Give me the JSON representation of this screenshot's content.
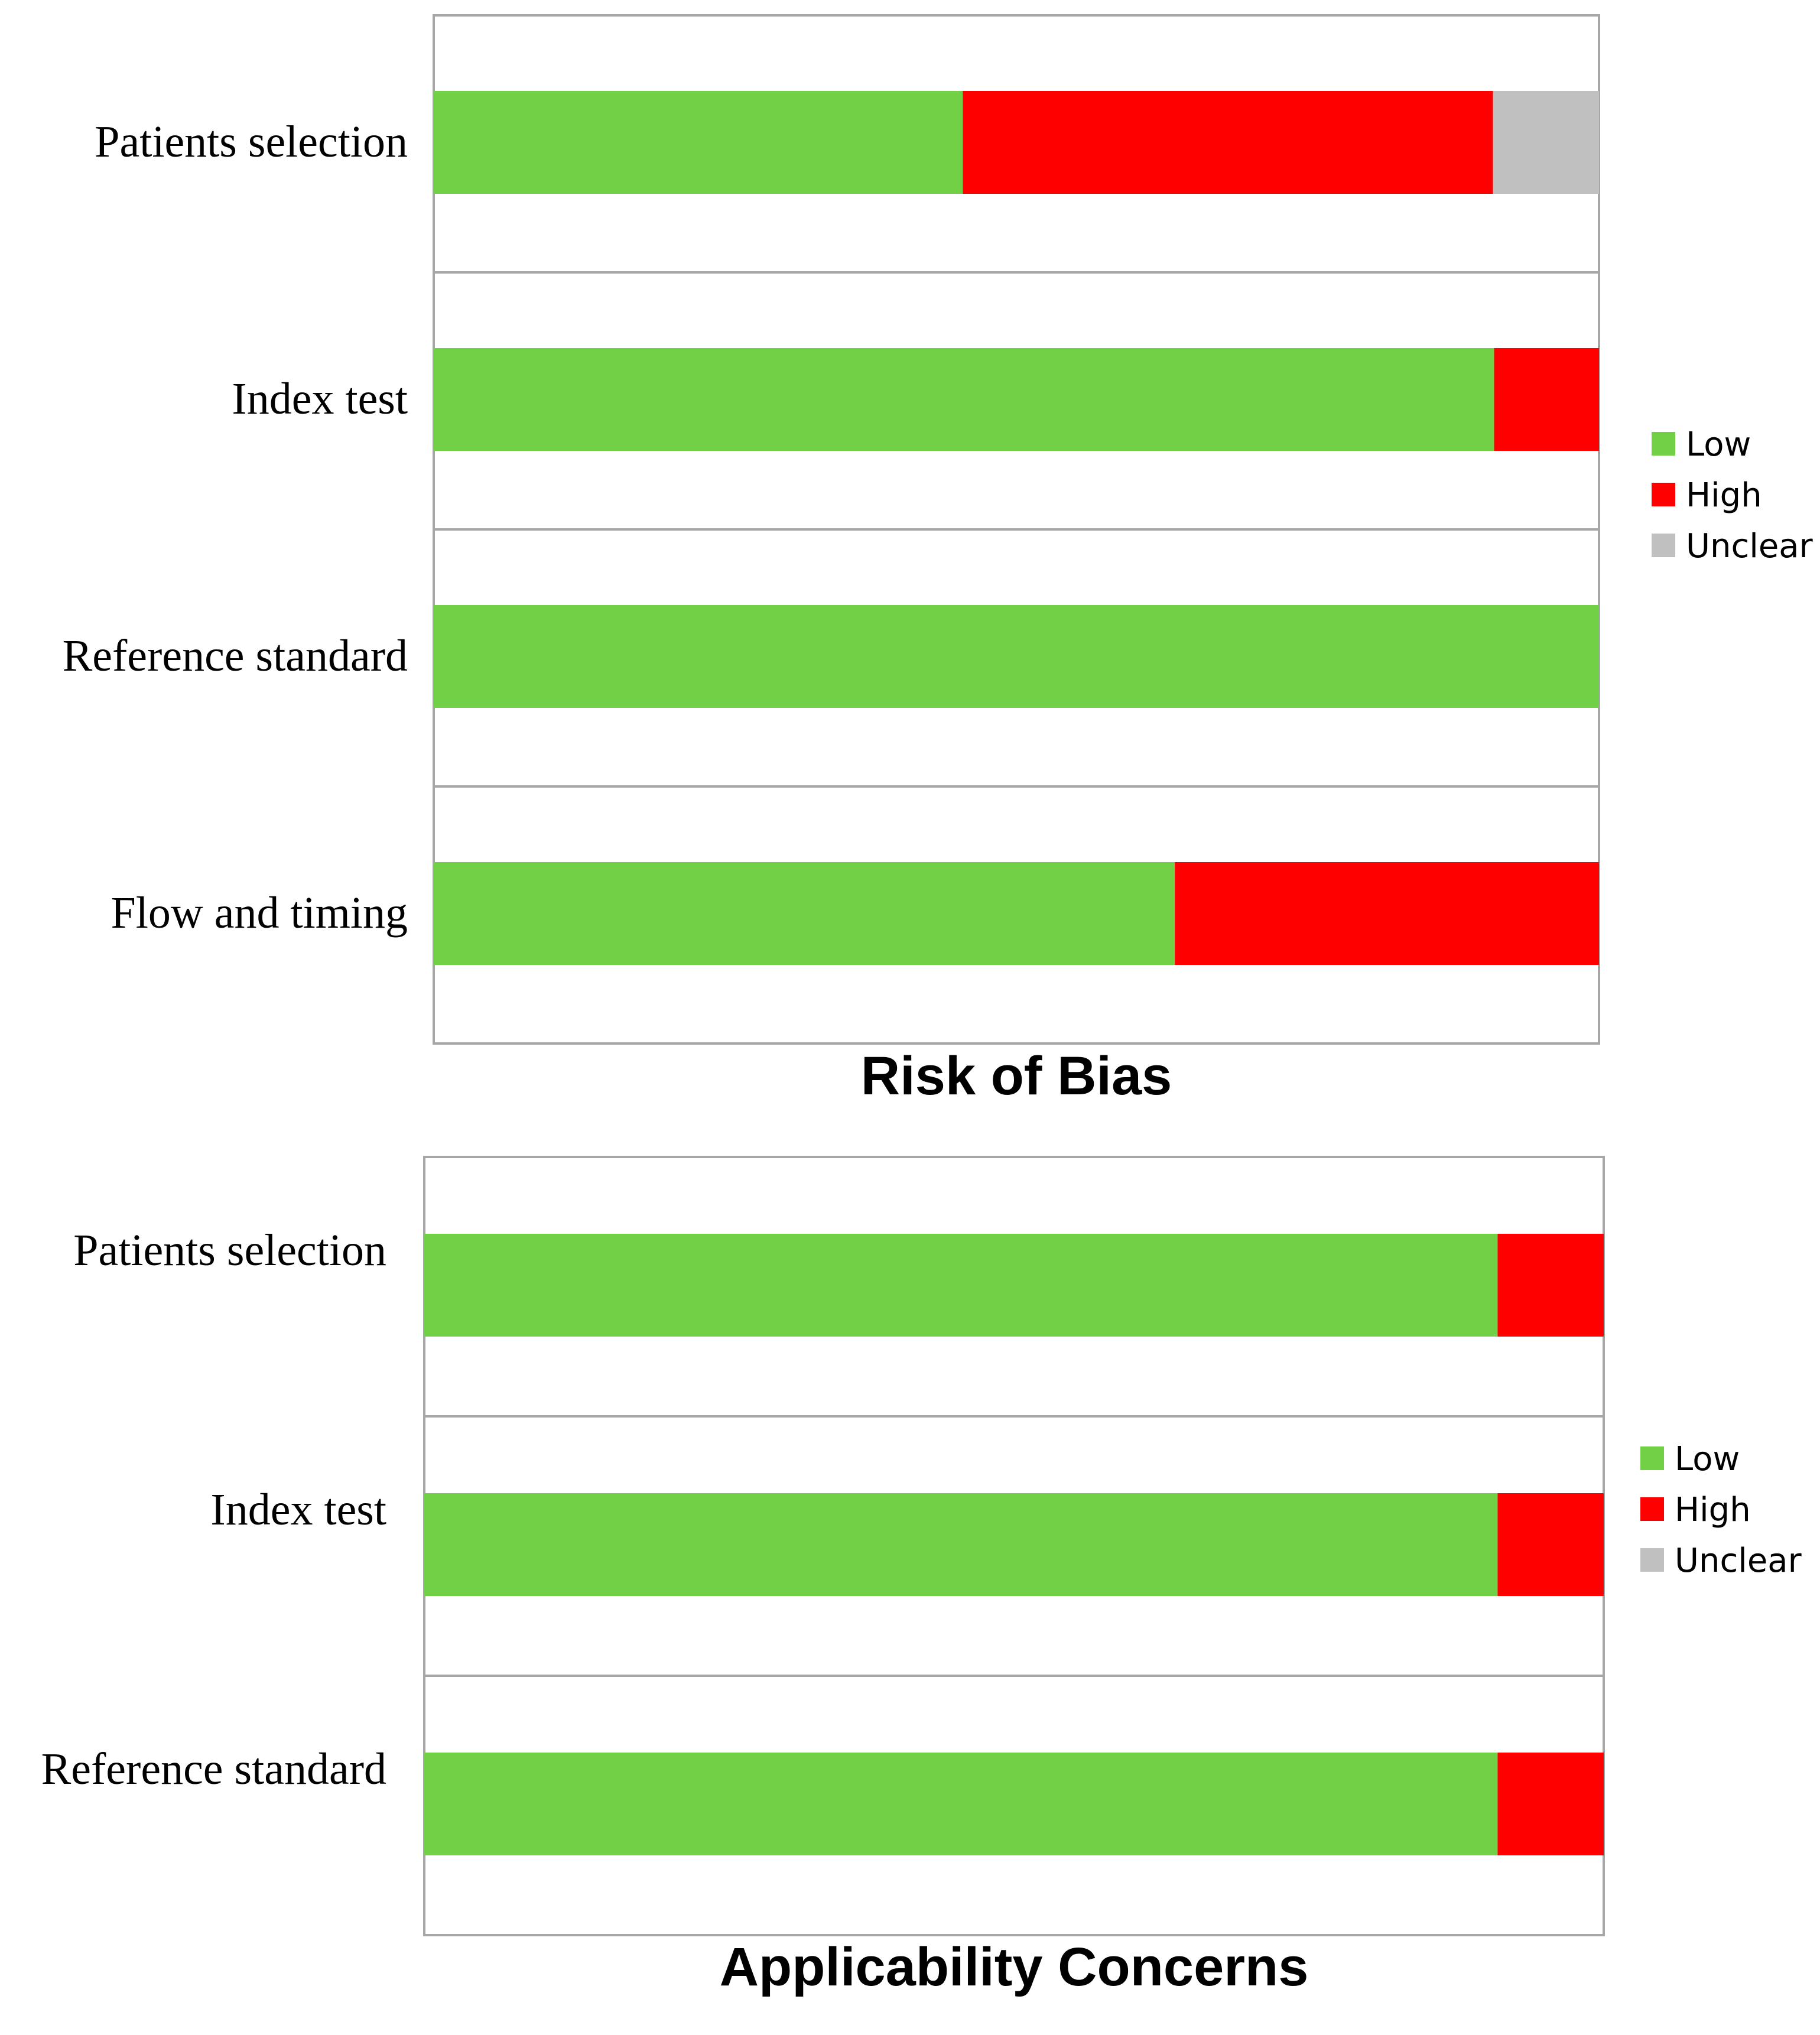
{
  "colors": {
    "Low": "#71d045",
    "High": "#ff0000",
    "Unclear": "#c0c0c0"
  },
  "chart_data": [
    {
      "type": "bar",
      "orientation": "horizontal",
      "stacked": true,
      "title": "Risk of Bias",
      "categories": [
        "Patients selection",
        "Index test",
        "Reference standard",
        "Flow and timing"
      ],
      "xlim": [
        0,
        100
      ],
      "series": [
        {
          "name": "Low",
          "values": [
            45.4,
            91,
            100,
            63.6
          ]
        },
        {
          "name": "High",
          "values": [
            45.5,
            9,
            0,
            36.4
          ]
        },
        {
          "name": "Unclear",
          "values": [
            9.1,
            0,
            0,
            0
          ]
        }
      ],
      "legend": [
        "Low",
        "High",
        "Unclear"
      ],
      "legend_position": "right"
    },
    {
      "type": "bar",
      "orientation": "horizontal",
      "stacked": true,
      "title": "Applicability Concerns",
      "categories": [
        "Patients selection",
        "Index test",
        "Reference standard"
      ],
      "xlim": [
        0,
        100
      ],
      "series": [
        {
          "name": "Low",
          "values": [
            91,
            91,
            91
          ]
        },
        {
          "name": "High",
          "values": [
            9,
            9,
            9
          ]
        },
        {
          "name": "Unclear",
          "values": [
            0,
            0,
            0
          ]
        }
      ],
      "legend": [
        "Low",
        "High",
        "Unclear"
      ],
      "legend_position": "right"
    }
  ]
}
